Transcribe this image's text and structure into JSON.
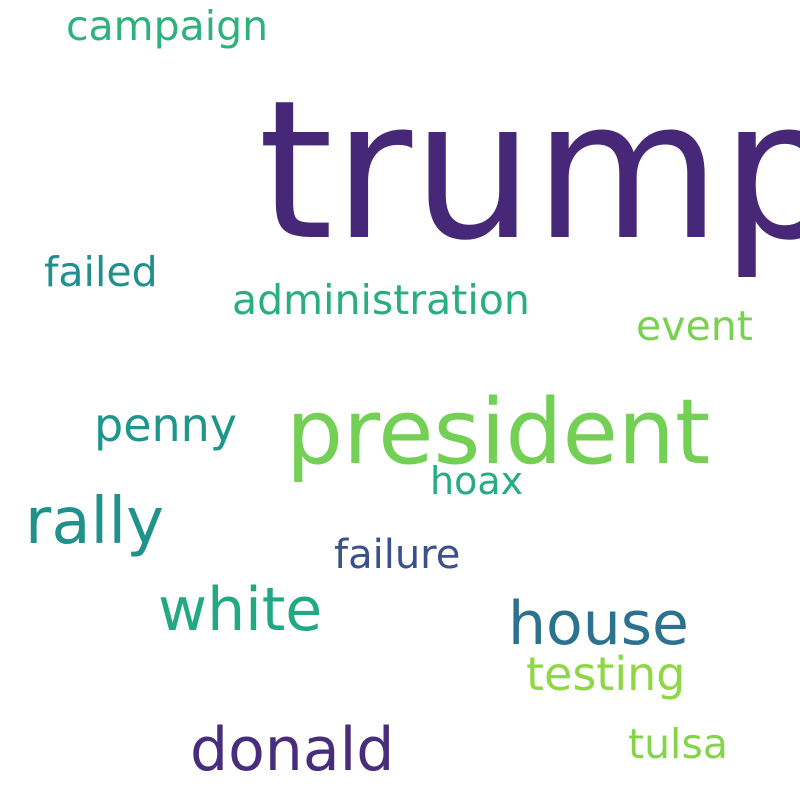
{
  "words": {
    "trump": {
      "text": "trump",
      "color": "#472777"
    },
    "president": {
      "text": "president",
      "color": "#74d055"
    },
    "rally": {
      "text": "rally",
      "color": "#21918c"
    },
    "white": {
      "text": "white",
      "color": "#23a884"
    },
    "house": {
      "text": "house",
      "color": "#2c718e"
    },
    "donald": {
      "text": "donald",
      "color": "#472d7b"
    },
    "administration": {
      "text": "administration",
      "color": "#28ae80"
    },
    "campaign": {
      "text": "campaign",
      "color": "#2db27d"
    },
    "penny": {
      "text": "penny",
      "color": "#1f968b"
    },
    "testing": {
      "text": "testing",
      "color": "#8fd744"
    },
    "failed": {
      "text": "failed",
      "color": "#21908d"
    },
    "event": {
      "text": "event",
      "color": "#7ad151"
    },
    "failure": {
      "text": "failure",
      "color": "#3b518b"
    },
    "hoax": {
      "text": "hoax",
      "color": "#25ac82"
    },
    "tulsa": {
      "text": "tulsa",
      "color": "#84d44b"
    }
  }
}
